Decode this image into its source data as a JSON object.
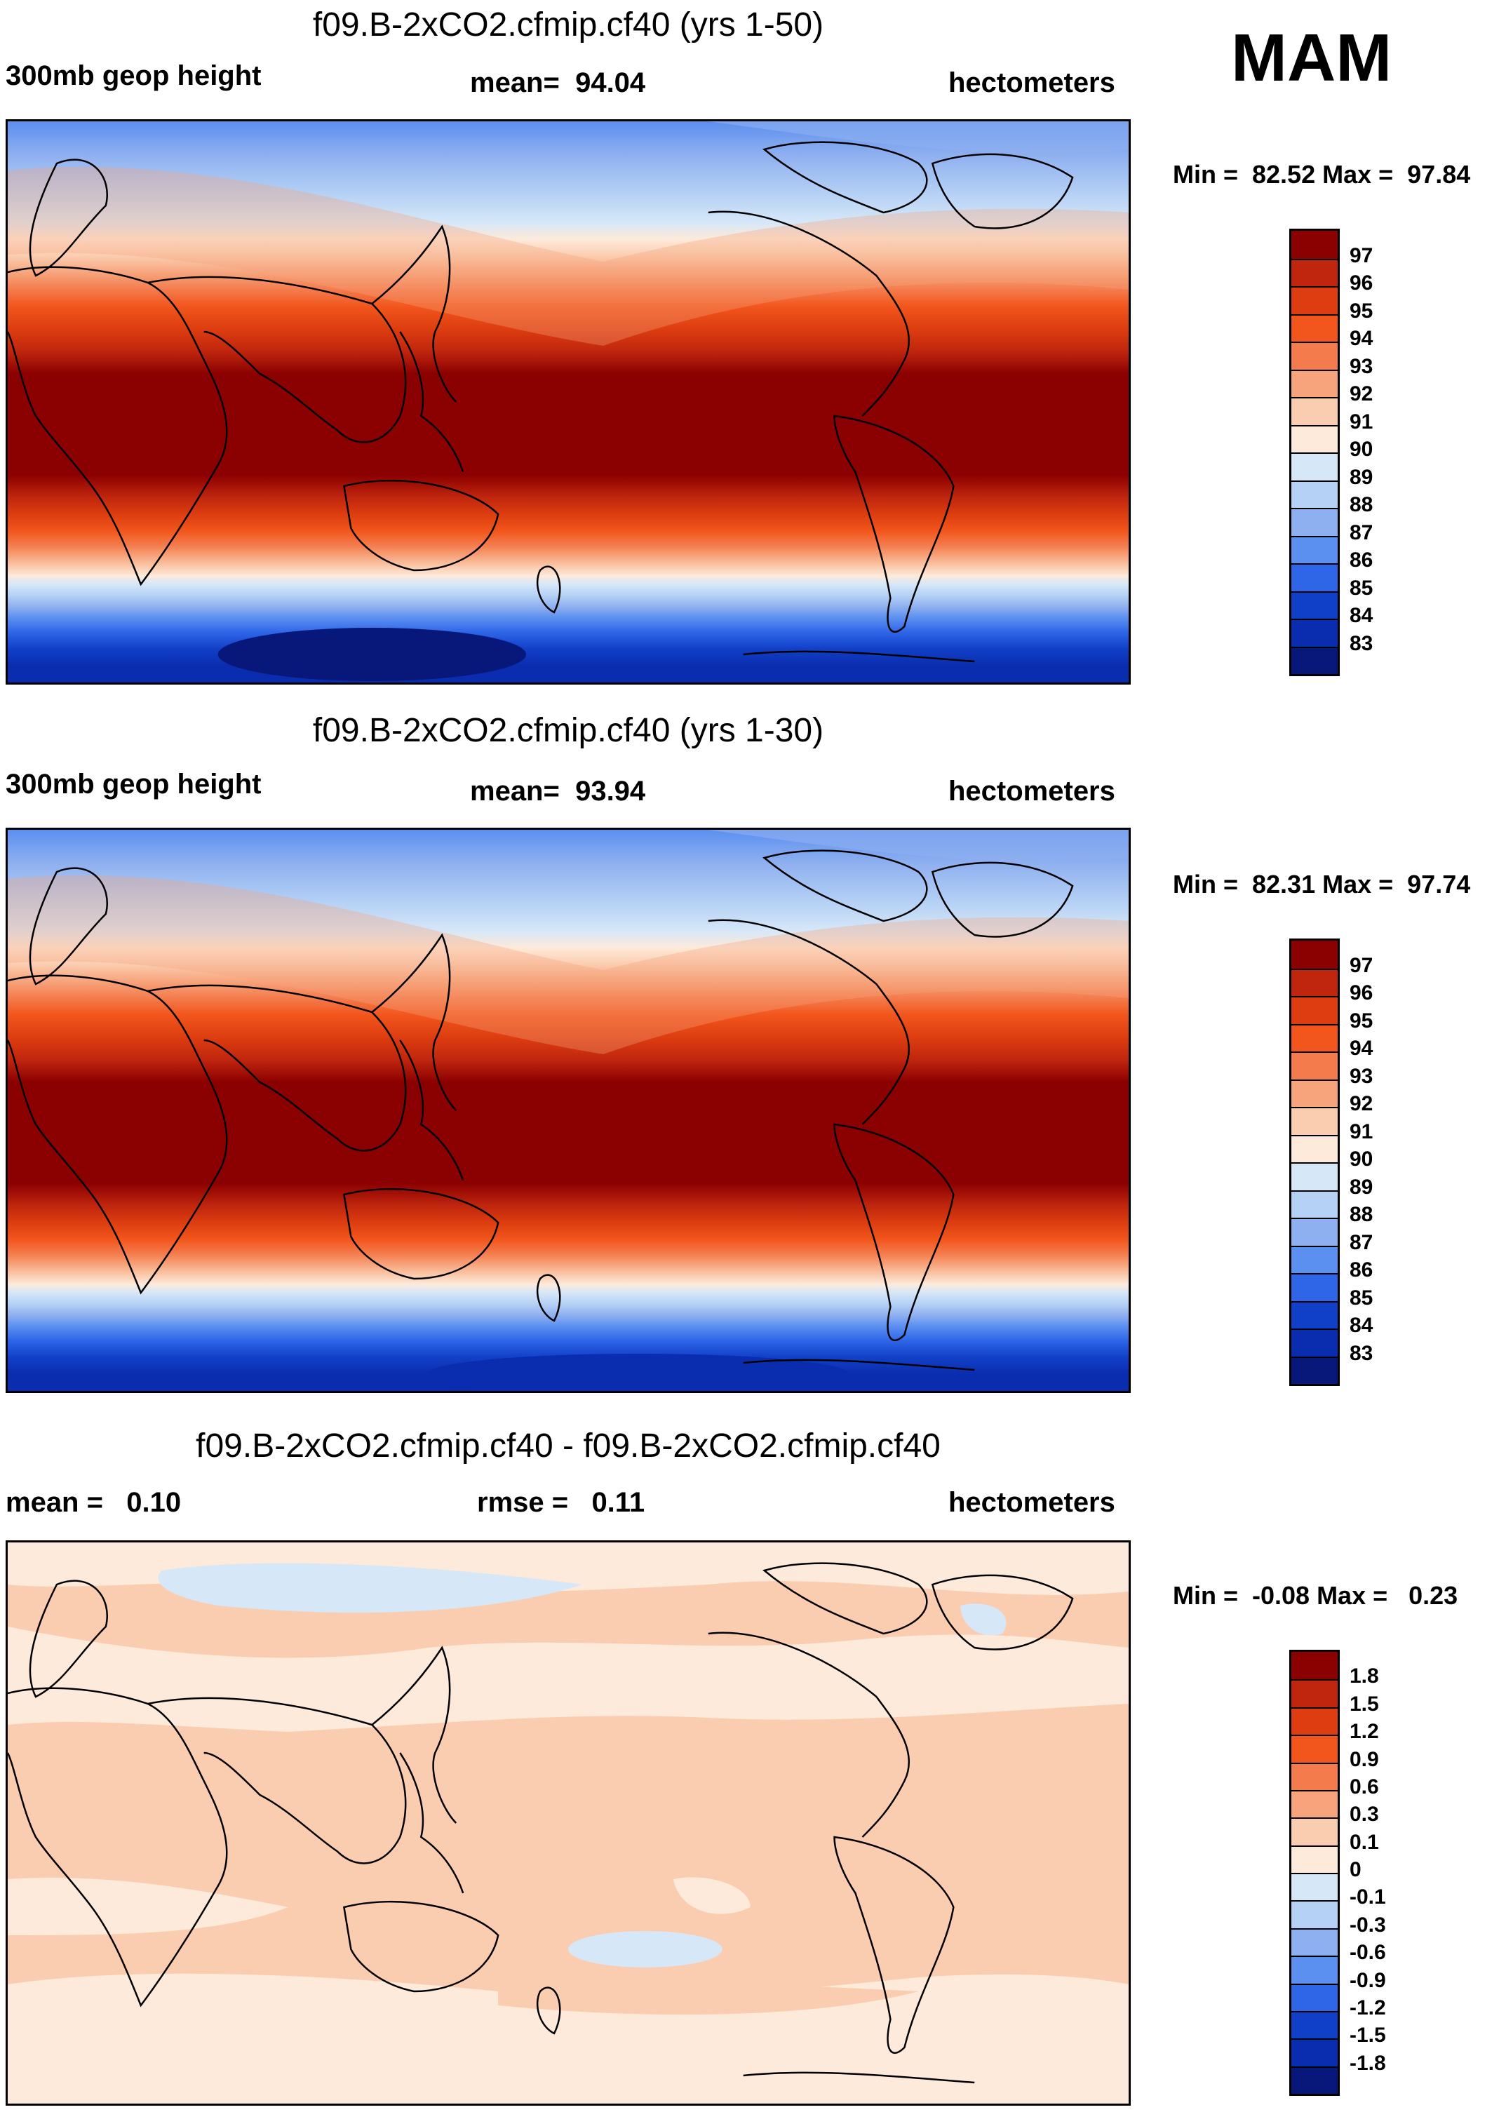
{
  "season": "MAM",
  "panels": [
    {
      "title": "f09.B-2xCO2.cfmip.cf40 (yrs 1-50)",
      "left_label": "300mb geop height",
      "center_label": "mean=  94.04",
      "right_label": "hectometers",
      "minmax": "Min =  82.52 Max =  97.84",
      "colorbar": {
        "labels": [
          "97",
          "96",
          "95",
          "94",
          "93",
          "92",
          "91",
          "90",
          "89",
          "88",
          "87",
          "86",
          "85",
          "84",
          "83"
        ],
        "colors": [
          "#8b0000",
          "#c0260e",
          "#dd3d10",
          "#f2561c",
          "#f47b4c",
          "#f7a47c",
          "#fbcdb0",
          "#fdeadb",
          "#d6e7f8",
          "#b5d1f5",
          "#8fb0f0",
          "#5b8ff0",
          "#2f66e8",
          "#1140c8",
          "#0a2db0",
          "#07187a"
        ]
      },
      "field_range": [
        82.52,
        97.84
      ]
    },
    {
      "title": "f09.B-2xCO2.cfmip.cf40 (yrs 1-30)",
      "left_label": "300mb geop height",
      "center_label": "mean=  93.94",
      "right_label": "hectometers",
      "minmax": "Min =  82.31 Max =  97.74",
      "colorbar": {
        "labels": [
          "97",
          "96",
          "95",
          "94",
          "93",
          "92",
          "91",
          "90",
          "89",
          "88",
          "87",
          "86",
          "85",
          "84",
          "83"
        ],
        "colors": [
          "#8b0000",
          "#c0260e",
          "#dd3d10",
          "#f2561c",
          "#f47b4c",
          "#f7a47c",
          "#fbcdb0",
          "#fdeadb",
          "#d6e7f8",
          "#b5d1f5",
          "#8fb0f0",
          "#5b8ff0",
          "#2f66e8",
          "#1140c8",
          "#0a2db0",
          "#07187a"
        ]
      },
      "field_range": [
        82.31,
        97.74
      ]
    },
    {
      "title": "f09.B-2xCO2.cfmip.cf40 - f09.B-2xCO2.cfmip.cf40",
      "left_label": "mean =   0.10",
      "center_label": "rmse =   0.11",
      "right_label": "hectometers",
      "minmax": "Min =  -0.08 Max =   0.23",
      "colorbar": {
        "labels": [
          "1.8",
          "1.5",
          "1.2",
          "0.9",
          "0.6",
          "0.3",
          "0.1",
          "0",
          "-0.1",
          "-0.3",
          "-0.6",
          "-0.9",
          "-1.2",
          "-1.5",
          "-1.8"
        ],
        "colors": [
          "#8b0000",
          "#c0260e",
          "#dd3d10",
          "#f2561c",
          "#f47b4c",
          "#f7a47c",
          "#fbcdb0",
          "#fdeadb",
          "#d6e7f8",
          "#b5d1f5",
          "#8fb0f0",
          "#5b8ff0",
          "#2f66e8",
          "#1140c8",
          "#0a2db0",
          "#07187a"
        ]
      },
      "field_range": [
        -0.08,
        0.23
      ]
    }
  ],
  "colors": {
    "land_outline": "#000000",
    "diff_positive_fill": "#fbcdb0",
    "diff_small_fill": "#fdeadb",
    "diff_negative_fill": "#d6e7f8"
  }
}
